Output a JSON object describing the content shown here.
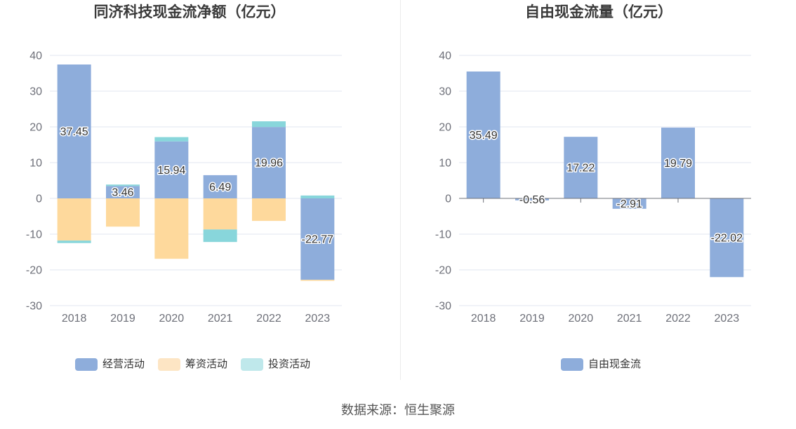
{
  "chart_data": [
    {
      "type": "bar",
      "stacked": true,
      "title": "同济科技现金流净额（亿元）",
      "categories": [
        "2018",
        "2019",
        "2020",
        "2021",
        "2022",
        "2023"
      ],
      "yticks": [
        40,
        30,
        20,
        10,
        0,
        -10,
        -20,
        -30
      ],
      "ylim": [
        -30,
        40
      ],
      "grid": true,
      "legend": "bottom",
      "series": [
        {
          "name": "经营活动",
          "values": [
            37.45,
            3.46,
            15.94,
            6.49,
            19.96,
            -22.77
          ],
          "data_labels": true,
          "color": "#8eaddb",
          "legend_color": "#8eaddb"
        },
        {
          "name": "筹资活动",
          "values": [
            -11.8,
            -7.9,
            -16.9,
            -8.7,
            -6.3,
            -0.3
          ],
          "data_labels": false,
          "color": "#fed99c",
          "legend_color": "#fde5c4"
        },
        {
          "name": "投资活动",
          "values": [
            -0.7,
            0.4,
            1.2,
            -3.5,
            1.6,
            0.8
          ],
          "data_labels": false,
          "color": "#88d6db",
          "legend_color": "#bfe8eb"
        }
      ]
    },
    {
      "type": "bar",
      "stacked": false,
      "title": "自由现金流量（亿元）",
      "categories": [
        "2018",
        "2019",
        "2020",
        "2021",
        "2022",
        "2023"
      ],
      "yticks": [
        40,
        30,
        20,
        10,
        0,
        -10,
        -20,
        -30
      ],
      "ylim": [
        -30,
        40
      ],
      "grid": true,
      "legend": "bottom",
      "series": [
        {
          "name": "自由现金流",
          "values": [
            35.49,
            -0.56,
            17.22,
            -2.91,
            19.79,
            -22.02
          ],
          "data_labels": true,
          "color": "#8eaddb",
          "legend_color": "#8eaddb"
        }
      ]
    }
  ],
  "source": "数据来源：恒生聚源"
}
